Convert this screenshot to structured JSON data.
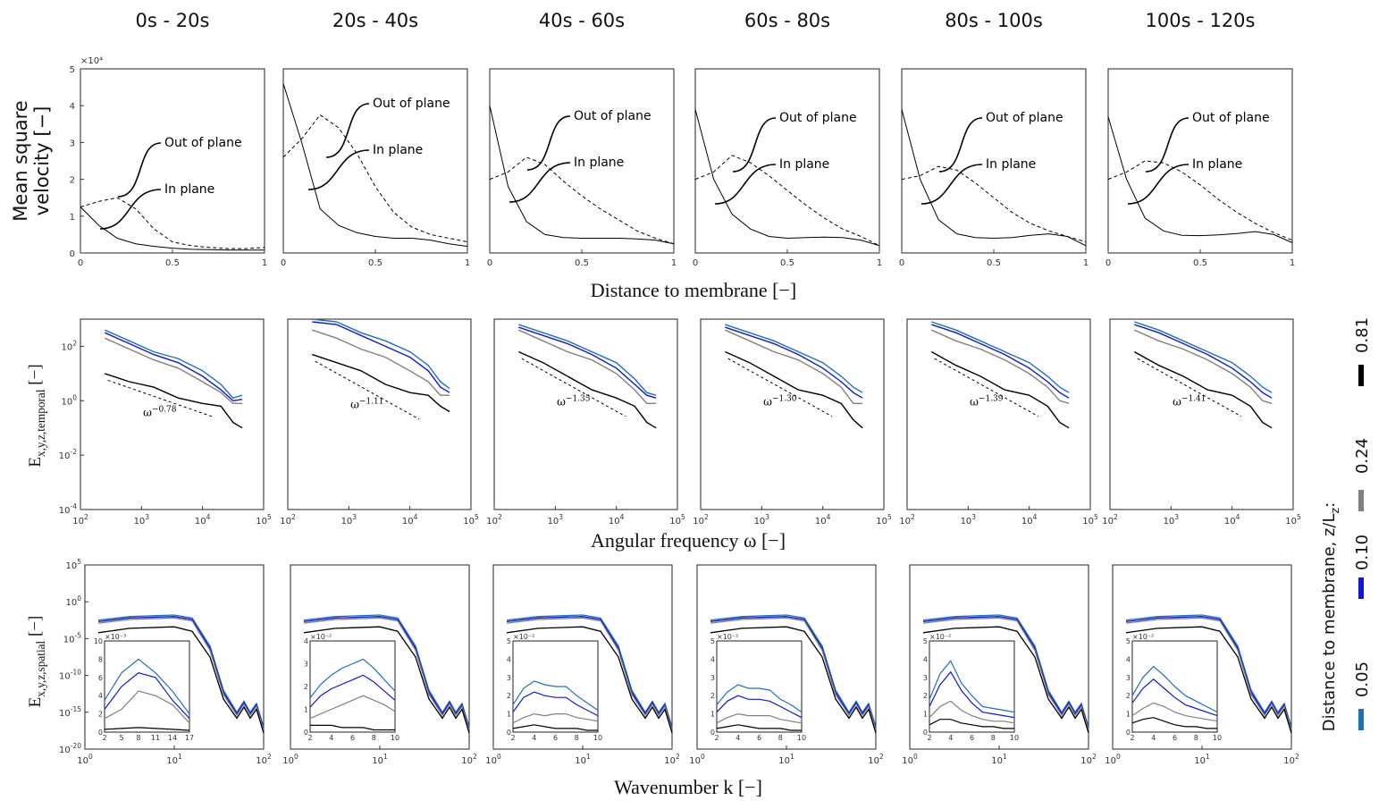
{
  "chart_data": {
    "column_titles": [
      "0s - 20s",
      "20s - 40s",
      "40s - 60s",
      "60s - 80s",
      "80s - 100s",
      "100s - 120s"
    ],
    "velocity": {
      "type": "line",
      "ylabel_lines": [
        "Mean square",
        "velocity [−]"
      ],
      "xlabel": "Distance to membrane [−]",
      "exponent_label": "×10⁴",
      "xlim": [
        0,
        1
      ],
      "ylim": [
        0,
        50000
      ],
      "x_ticks": [
        "0",
        "0.5",
        "1"
      ],
      "y_ticks": [
        "0",
        "1",
        "2",
        "3",
        "4",
        "5"
      ],
      "x": [
        0,
        0.1,
        0.2,
        0.3,
        0.4,
        0.5,
        0.6,
        0.7,
        0.8,
        0.9,
        1.0
      ],
      "out_of_plane_label": "Out of plane",
      "in_plane_label": "In plane",
      "panels": [
        {
          "in_plane": [
            12500,
            7500,
            4000,
            2500,
            1800,
            1300,
            1000,
            900,
            800,
            800,
            800
          ],
          "out_of_plane": [
            12500,
            14000,
            15000,
            12000,
            6500,
            3000,
            2000,
            1500,
            1200,
            1200,
            1500
          ]
        },
        {
          "in_plane": [
            46000,
            30000,
            12000,
            7500,
            5500,
            4500,
            4000,
            4000,
            3500,
            2500,
            1800
          ],
          "out_of_plane": [
            26000,
            31000,
            37500,
            34000,
            27000,
            18000,
            11000,
            7000,
            5000,
            4000,
            3000
          ]
        },
        {
          "in_plane": [
            40000,
            18000,
            8500,
            5000,
            4200,
            4000,
            4000,
            4000,
            3800,
            3500,
            2500
          ],
          "out_of_plane": [
            20000,
            22000,
            26000,
            24000,
            19500,
            15500,
            12000,
            9000,
            6000,
            4000,
            2500
          ]
        },
        {
          "in_plane": [
            39000,
            20000,
            10500,
            6500,
            4500,
            4000,
            4200,
            4300,
            4200,
            3500,
            2000
          ],
          "out_of_plane": [
            20000,
            22000,
            26500,
            24500,
            21000,
            17000,
            13000,
            9500,
            6500,
            4500,
            2000
          ]
        },
        {
          "in_plane": [
            39000,
            20000,
            9000,
            5200,
            4200,
            4000,
            4200,
            4800,
            5200,
            4500,
            2000
          ],
          "out_of_plane": [
            20000,
            21000,
            23500,
            22500,
            19000,
            15000,
            11000,
            8000,
            6000,
            4500,
            3000
          ]
        },
        {
          "in_plane": [
            37000,
            20000,
            9500,
            6000,
            4800,
            4700,
            4900,
            5300,
            5800,
            5000,
            2800
          ],
          "out_of_plane": [
            20000,
            22000,
            25000,
            24500,
            22000,
            18500,
            14500,
            11000,
            8000,
            5500,
            3500
          ]
        }
      ]
    },
    "temporal": {
      "type": "line",
      "ylabel": "E",
      "ylabel_sub": "x,y,z,temporal",
      "ylabel_unit": " [−]",
      "xlabel": "Angular frequency ω [−]",
      "x_range_log10": [
        2,
        5
      ],
      "y_range_log10": [
        -4,
        3
      ],
      "x_tick_exps": [
        "2",
        "3",
        "4",
        "5"
      ],
      "y_tick_exps": [
        "2",
        "0",
        "-2",
        "-4"
      ],
      "tick_base": "10",
      "power_law_base": "ω",
      "power_law_exponents": [
        "−0.78",
        "−1.11",
        "−1.35",
        "−1.30",
        "−1.39",
        "−1.41"
      ],
      "series_names": [
        "0.05",
        "0.10",
        "0.24",
        "0.81"
      ],
      "log10_x": [
        2.4,
        2.8,
        3.2,
        3.6,
        4.0,
        4.3,
        4.5,
        4.65
      ],
      "panels": [
        [
          [
            2.6,
            2.2,
            1.8,
            1.55,
            1.1,
            0.6,
            0.1,
            0.2
          ],
          [
            2.5,
            2.1,
            1.7,
            1.4,
            0.9,
            0.4,
            0.0,
            0.05
          ],
          [
            2.3,
            1.9,
            1.5,
            1.2,
            0.7,
            0.3,
            -0.1,
            -0.1
          ],
          [
            1.0,
            0.7,
            0.5,
            0.1,
            -0.1,
            -0.2,
            -0.8,
            -1.0
          ]
        ],
        [
          [
            3.0,
            2.9,
            2.5,
            2.2,
            1.8,
            1.3,
            0.7,
            0.45
          ],
          [
            2.9,
            2.8,
            2.4,
            2.0,
            1.6,
            1.1,
            0.5,
            0.3
          ],
          [
            2.6,
            2.3,
            1.9,
            1.6,
            1.1,
            0.7,
            0.2,
            0.2
          ],
          [
            1.7,
            1.4,
            1.1,
            0.6,
            0.3,
            0.2,
            -0.2,
            -0.4
          ]
        ],
        [
          [
            2.8,
            2.5,
            2.2,
            1.8,
            1.4,
            0.8,
            0.3,
            0.2
          ],
          [
            2.7,
            2.4,
            2.1,
            1.7,
            1.2,
            0.6,
            0.2,
            0.1
          ],
          [
            2.6,
            2.2,
            1.8,
            1.5,
            1.0,
            0.4,
            -0.1,
            -0.1
          ],
          [
            1.8,
            1.4,
            0.9,
            0.4,
            0.1,
            -0.2,
            -0.8,
            -1.0
          ]
        ],
        [
          [
            2.8,
            2.5,
            2.2,
            1.8,
            1.4,
            0.9,
            0.5,
            0.3
          ],
          [
            2.7,
            2.4,
            2.1,
            1.7,
            1.2,
            0.7,
            0.3,
            0.1
          ],
          [
            2.6,
            2.2,
            1.8,
            1.5,
            1.0,
            0.5,
            -0.1,
            -0.1
          ],
          [
            1.8,
            1.4,
            0.9,
            0.4,
            0.2,
            -0.1,
            -0.7,
            -1.0
          ]
        ],
        [
          [
            2.9,
            2.6,
            2.2,
            1.8,
            1.4,
            0.9,
            0.5,
            0.3
          ],
          [
            2.8,
            2.5,
            2.1,
            1.7,
            1.2,
            0.7,
            0.3,
            0.1
          ],
          [
            2.6,
            2.2,
            1.9,
            1.5,
            1.0,
            0.5,
            0.0,
            -0.1
          ],
          [
            1.8,
            1.3,
            0.9,
            0.4,
            0.2,
            -0.2,
            -0.8,
            -1.0
          ]
        ],
        [
          [
            2.9,
            2.6,
            2.2,
            1.8,
            1.4,
            0.9,
            0.5,
            0.3
          ],
          [
            2.8,
            2.5,
            2.1,
            1.7,
            1.2,
            0.7,
            0.3,
            0.1
          ],
          [
            2.6,
            2.2,
            1.9,
            1.5,
            1.0,
            0.5,
            0.0,
            -0.1
          ],
          [
            1.8,
            1.3,
            0.9,
            0.4,
            0.2,
            -0.2,
            -0.8,
            -1.0
          ]
        ]
      ]
    },
    "spatial": {
      "type": "line",
      "ylabel": "E",
      "ylabel_sub": "x,y,z,spatial",
      "ylabel_unit": " [−]",
      "xlabel": "Wavenumber k [−]",
      "x_range_log10": [
        0,
        2
      ],
      "y_range_log10": [
        -20,
        5
      ],
      "x_tick_exps": [
        "0",
        "1",
        "2"
      ],
      "y_tick_exps": [
        "5",
        "0",
        "-5",
        "-10",
        "-15",
        "-20"
      ],
      "tick_base": "10",
      "series_names": [
        "0.05",
        "0.10",
        "0.24",
        "0.81"
      ],
      "log10_x": [
        0.15,
        0.5,
        1.0,
        1.2,
        1.4,
        1.55,
        1.7,
        1.78,
        1.85,
        1.92,
        2.0
      ],
      "main_values": [
        [
          -2.5,
          -2.0,
          -1.8,
          -2.2,
          -6,
          -12,
          -15,
          -13.5,
          -15,
          -13.8,
          -17
        ],
        [
          -2.7,
          -2.2,
          -2.0,
          -2.4,
          -6.3,
          -12.3,
          -15.2,
          -13.7,
          -15.2,
          -14,
          -17.2
        ],
        [
          -2.9,
          -2.4,
          -2.2,
          -2.6,
          -6.6,
          -12.6,
          -15.4,
          -13.9,
          -15.4,
          -14.2,
          -17.4
        ],
        [
          -4.2,
          -3.6,
          -3.4,
          -4.0,
          -7.5,
          -13.2,
          -15.8,
          -14.3,
          -15.8,
          -14.6,
          -17.8
        ]
      ],
      "insets": [
        {
          "multiplier": "×10⁻³",
          "xlim": [
            2,
            17
          ],
          "ylim": [
            0,
            10
          ],
          "x_ticks": [
            "2",
            "5",
            "8",
            "11",
            "14",
            "17"
          ],
          "y_ticks": [
            "0",
            "2",
            "4",
            "6",
            "8",
            "10"
          ],
          "x": [
            2,
            5,
            8,
            11,
            14,
            17
          ],
          "series": [
            [
              3.5,
              6.5,
              8.0,
              6.5,
              4.5,
              2.0
            ],
            [
              2.5,
              5.0,
              6.5,
              6.0,
              3.5,
              1.5
            ],
            [
              1.5,
              2.5,
              4.5,
              4.0,
              3.0,
              1.0
            ],
            [
              0.3,
              0.4,
              0.5,
              0.4,
              0.3,
              0.2
            ]
          ]
        },
        {
          "multiplier": "×10⁻²",
          "xlim": [
            2,
            10
          ],
          "ylim": [
            0,
            4
          ],
          "x_ticks": [
            "2",
            "4",
            "6",
            "8",
            "10"
          ],
          "y_ticks": [
            "0",
            "1",
            "2",
            "3",
            "4"
          ],
          "x": [
            2,
            3,
            4,
            5,
            6,
            7,
            8,
            9,
            10
          ],
          "series": [
            [
              1.5,
              2.1,
              2.5,
              2.8,
              3.0,
              3.2,
              2.8,
              2.3,
              1.8
            ],
            [
              1.1,
              1.6,
              1.9,
              2.1,
              2.3,
              2.5,
              2.2,
              1.8,
              1.4
            ],
            [
              0.6,
              0.8,
              1.0,
              1.2,
              1.4,
              1.6,
              1.4,
              1.2,
              0.9
            ],
            [
              0.3,
              0.3,
              0.3,
              0.2,
              0.2,
              0.2,
              0.1,
              0.1,
              0.1
            ]
          ]
        },
        {
          "multiplier": "×10⁻²",
          "xlim": [
            2,
            10
          ],
          "ylim": [
            0,
            5
          ],
          "x_ticks": [
            "2",
            "4",
            "6",
            "8",
            "10"
          ],
          "y_ticks": [
            "0",
            "1",
            "2",
            "3",
            "4",
            "5"
          ],
          "x": [
            2,
            3,
            4,
            5,
            6,
            7,
            8,
            9,
            10
          ],
          "series": [
            [
              1.5,
              2.4,
              2.8,
              2.6,
              2.5,
              2.5,
              2.0,
              1.6,
              1.2
            ],
            [
              1.1,
              1.9,
              2.2,
              2.0,
              1.9,
              1.9,
              1.5,
              1.2,
              0.9
            ],
            [
              0.5,
              0.8,
              1.0,
              0.9,
              1.0,
              1.0,
              0.8,
              0.7,
              0.6
            ],
            [
              0.2,
              0.3,
              0.4,
              0.3,
              0.2,
              0.2,
              0.2,
              0.1,
              0.1
            ]
          ]
        },
        {
          "multiplier": "×10⁻²",
          "xlim": [
            2,
            10
          ],
          "ylim": [
            0,
            5
          ],
          "x_ticks": [
            "2",
            "4",
            "6",
            "8",
            "10"
          ],
          "y_ticks": [
            "0",
            "1",
            "2",
            "3",
            "4",
            "5"
          ],
          "x": [
            2,
            3,
            4,
            5,
            6,
            7,
            8,
            9,
            10
          ],
          "series": [
            [
              1.5,
              2.2,
              2.6,
              2.4,
              2.4,
              2.3,
              1.8,
              1.5,
              1.1
            ],
            [
              1.1,
              1.7,
              2.0,
              1.8,
              1.8,
              1.7,
              1.4,
              1.1,
              0.8
            ],
            [
              0.5,
              0.8,
              1.0,
              0.9,
              0.9,
              0.9,
              0.7,
              0.6,
              0.5
            ],
            [
              0.2,
              0.3,
              0.4,
              0.3,
              0.2,
              0.2,
              0.2,
              0.1,
              0.1
            ]
          ]
        },
        {
          "multiplier": "×10⁻²",
          "xlim": [
            2,
            10
          ],
          "ylim": [
            0,
            5
          ],
          "x_ticks": [
            "2",
            "4",
            "6",
            "8",
            "10"
          ],
          "y_ticks": [
            "0",
            "1",
            "2",
            "3",
            "4",
            "5"
          ],
          "x": [
            2,
            3,
            4,
            5,
            6,
            7,
            8,
            9,
            10
          ],
          "series": [
            [
              1.8,
              3.2,
              3.9,
              2.7,
              2.0,
              1.4,
              1.3,
              1.2,
              1.1
            ],
            [
              1.4,
              2.6,
              3.3,
              2.3,
              1.6,
              1.1,
              1.0,
              0.9,
              0.8
            ],
            [
              0.8,
              1.4,
              1.7,
              1.2,
              0.9,
              0.7,
              0.6,
              0.6,
              0.5
            ],
            [
              0.4,
              0.7,
              0.7,
              0.5,
              0.4,
              0.3,
              0.3,
              0.2,
              0.2
            ]
          ]
        },
        {
          "multiplier": "×10⁻²",
          "xlim": [
            2,
            10
          ],
          "ylim": [
            0,
            5
          ],
          "x_ticks": [
            "2",
            "4",
            "6",
            "8",
            "10"
          ],
          "y_ticks": [
            "0",
            "1",
            "2",
            "3",
            "4",
            "5"
          ],
          "x": [
            2,
            3,
            4,
            5,
            6,
            7,
            8,
            9,
            10
          ],
          "series": [
            [
              2.0,
              3.0,
              3.6,
              3.1,
              2.5,
              2.0,
              1.7,
              1.4,
              1.1
            ],
            [
              1.6,
              2.4,
              2.9,
              2.4,
              1.9,
              1.5,
              1.3,
              1.1,
              0.9
            ],
            [
              0.9,
              1.3,
              1.6,
              1.4,
              1.1,
              0.9,
              0.8,
              0.7,
              0.6
            ],
            [
              0.5,
              0.7,
              0.8,
              0.6,
              0.4,
              0.3,
              0.3,
              0.2,
              0.2
            ]
          ]
        }
      ]
    },
    "colorbar": {
      "title": "Distance to membrane, z/L",
      "title_sub": "z",
      "title_tail": ":",
      "levels": [
        "0.05",
        "0.10",
        "0.24",
        "0.81"
      ]
    }
  },
  "colors": {
    "s005": "#1a73b8",
    "s010": "#1018d8",
    "s024": "#808080",
    "s081": "#000000",
    "axis": "#333333"
  }
}
